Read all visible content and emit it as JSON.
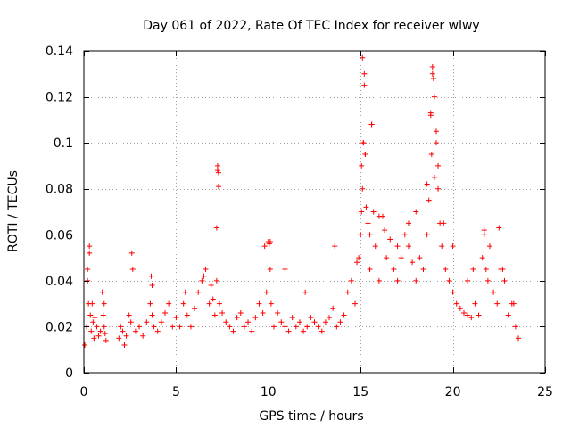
{
  "chart_data": {
    "type": "scatter",
    "title": "Day 061 of 2022, Rate Of TEC Index for receiver wlwy",
    "xlabel": "GPS time / hours",
    "ylabel": "ROTI / TECUs",
    "xlim": [
      0,
      25
    ],
    "ylim": [
      0,
      0.14
    ],
    "xticks": [
      0,
      5,
      10,
      15,
      20,
      25
    ],
    "xtick_labels": [
      "0",
      "5",
      "10",
      "15",
      "20",
      "25"
    ],
    "yticks": [
      0,
      0.02,
      0.04,
      0.06,
      0.08,
      0.1,
      0.12,
      0.14
    ],
    "ytick_labels": [
      "0",
      "0.02",
      "0.04",
      "0.06",
      "0.08",
      "0.1",
      "0.12",
      "0.14"
    ],
    "grid": true,
    "marker": "plus",
    "series": [
      {
        "name": "ROTI",
        "color": "#ff0000",
        "x": [
          0.05,
          0.15,
          0.2,
          0.25,
          0.3,
          0.35,
          0.4,
          0.45,
          0.5,
          0.55,
          0.6,
          0.7,
          0.8,
          0.9,
          1.0,
          1.05,
          1.1,
          1.15,
          1.2,
          1.9,
          2.0,
          2.1,
          2.2,
          2.3,
          2.45,
          2.55,
          2.65,
          2.8,
          3.0,
          3.2,
          3.4,
          3.6,
          3.65,
          3.7,
          3.8,
          4.0,
          4.2,
          4.4,
          4.6,
          4.8,
          5.0,
          5.2,
          5.4,
          5.6,
          5.8,
          6.0,
          6.2,
          6.4,
          6.6,
          6.8,
          6.9,
          7.0,
          7.1,
          7.2,
          7.25,
          7.3,
          7.35,
          7.5,
          7.7,
          7.9,
          8.1,
          8.3,
          8.5,
          8.7,
          8.9,
          9.1,
          9.3,
          9.5,
          9.7,
          9.9,
          10.0,
          10.05,
          10.1,
          10.15,
          10.3,
          10.5,
          10.7,
          10.9,
          11.1,
          11.3,
          11.5,
          11.7,
          11.9,
          12.1,
          12.3,
          12.5,
          12.7,
          12.9,
          13.1,
          13.3,
          13.5,
          13.7,
          13.9,
          14.1,
          14.3,
          14.5,
          14.7,
          14.9,
          15.0,
          15.05,
          15.1,
          15.15,
          15.2,
          15.25,
          15.3,
          15.4,
          15.5,
          15.6,
          15.7,
          15.8,
          16.0,
          16.2,
          16.4,
          16.6,
          16.8,
          17.0,
          17.2,
          17.4,
          17.6,
          17.8,
          18.0,
          18.2,
          18.4,
          18.6,
          18.7,
          18.8,
          18.85,
          18.9,
          18.95,
          19.0,
          19.1,
          19.2,
          19.3,
          19.4,
          19.6,
          19.8,
          20.0,
          20.2,
          20.4,
          20.6,
          20.8,
          21.0,
          21.2,
          21.4,
          21.6,
          21.7,
          21.8,
          21.9,
          22.0,
          22.2,
          22.4,
          22.6,
          22.8,
          23.0,
          23.2,
          23.4,
          23.55,
          0.2,
          0.3,
          1.1,
          2.6,
          3.7,
          5.5,
          6.5,
          7.25,
          7.3,
          7.2,
          9.8,
          10.1,
          10.9,
          12.0,
          13.6,
          14.8,
          15.1,
          15.2,
          15.25,
          15.05,
          15.15,
          15.5,
          15.6,
          16.0,
          16.3,
          17.0,
          17.6,
          18.0,
          18.6,
          18.8,
          18.9,
          19.0,
          19.1,
          19.2,
          19.5,
          20.0,
          20.8,
          21.1,
          21.7,
          22.5,
          22.7,
          23.3
        ],
        "y": [
          0.012,
          0.02,
          0.045,
          0.03,
          0.055,
          0.025,
          0.018,
          0.03,
          0.022,
          0.015,
          0.024,
          0.02,
          0.016,
          0.018,
          0.035,
          0.025,
          0.02,
          0.017,
          0.014,
          0.015,
          0.02,
          0.018,
          0.012,
          0.016,
          0.025,
          0.022,
          0.045,
          0.018,
          0.02,
          0.016,
          0.022,
          0.03,
          0.042,
          0.025,
          0.02,
          0.018,
          0.022,
          0.026,
          0.03,
          0.02,
          0.024,
          0.02,
          0.03,
          0.025,
          0.02,
          0.028,
          0.035,
          0.04,
          0.045,
          0.03,
          0.038,
          0.032,
          0.025,
          0.04,
          0.088,
          0.087,
          0.03,
          0.026,
          0.022,
          0.02,
          0.018,
          0.024,
          0.026,
          0.02,
          0.022,
          0.018,
          0.024,
          0.03,
          0.026,
          0.035,
          0.057,
          0.056,
          0.045,
          0.03,
          0.02,
          0.026,
          0.022,
          0.02,
          0.018,
          0.024,
          0.02,
          0.022,
          0.018,
          0.02,
          0.024,
          0.022,
          0.02,
          0.018,
          0.022,
          0.024,
          0.028,
          0.02,
          0.022,
          0.025,
          0.035,
          0.04,
          0.03,
          0.05,
          0.06,
          0.07,
          0.08,
          0.1,
          0.13,
          0.095,
          0.072,
          0.065,
          0.045,
          0.108,
          0.07,
          0.055,
          0.04,
          0.068,
          0.05,
          0.058,
          0.045,
          0.04,
          0.05,
          0.06,
          0.055,
          0.048,
          0.04,
          0.05,
          0.045,
          0.06,
          0.075,
          0.112,
          0.095,
          0.13,
          0.128,
          0.085,
          0.1,
          0.08,
          0.065,
          0.055,
          0.045,
          0.04,
          0.035,
          0.03,
          0.028,
          0.026,
          0.025,
          0.024,
          0.03,
          0.025,
          0.05,
          0.06,
          0.045,
          0.04,
          0.055,
          0.035,
          0.03,
          0.045,
          0.04,
          0.025,
          0.03,
          0.02,
          0.015,
          0.04,
          0.052,
          0.03,
          0.052,
          0.038,
          0.035,
          0.042,
          0.09,
          0.081,
          0.063,
          0.055,
          0.057,
          0.045,
          0.035,
          0.055,
          0.048,
          0.137,
          0.125,
          0.095,
          0.09,
          0.1,
          0.06,
          0.108,
          0.068,
          0.062,
          0.055,
          0.065,
          0.07,
          0.082,
          0.113,
          0.133,
          0.12,
          0.105,
          0.09,
          0.065,
          0.055,
          0.04,
          0.045,
          0.062,
          0.063,
          0.045,
          0.03
        ]
      }
    ]
  }
}
